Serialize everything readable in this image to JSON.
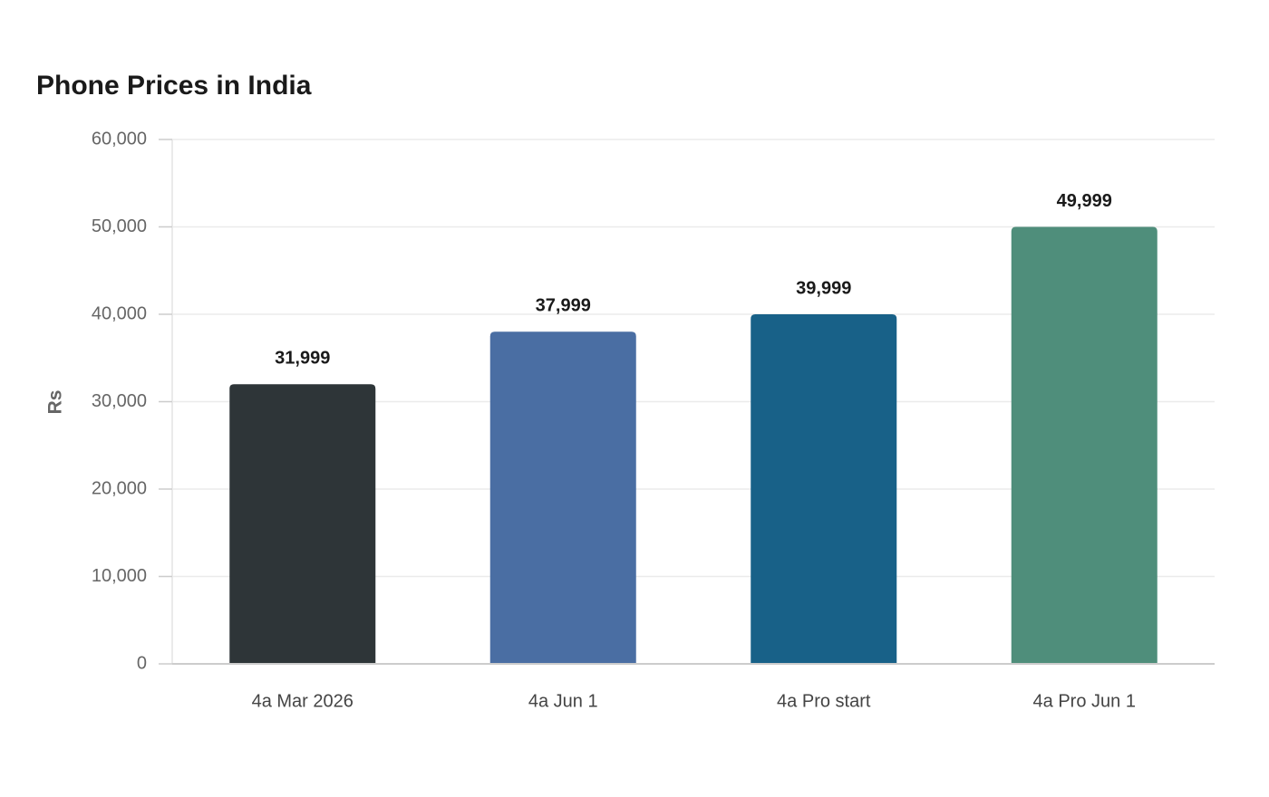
{
  "chart_data": {
    "type": "bar",
    "title": "Phone Prices in India",
    "y_label": "Rs",
    "categories": [
      "4a Mar 2026",
      "4a Jun 1",
      "4a Pro start",
      "4a Pro Jun 1"
    ],
    "values": [
      31999,
      37999,
      39999,
      49999
    ],
    "value_labels": [
      "31,999",
      "37,999",
      "39,999",
      "49,999"
    ],
    "colors": [
      "#2e3538",
      "#4a6ea3",
      "#186188",
      "#4f8e7b"
    ],
    "ylim": [
      0,
      60000
    ],
    "yticks": [
      0,
      {
        "value": 10000,
        "label": "10,000"
      },
      {
        "value": 20000,
        "label": "20,000"
      },
      {
        "value": 30000,
        "label": "30,000"
      },
      {
        "value": 40000,
        "label": "40,000"
      },
      {
        "value": 50000,
        "label": "50,000"
      },
      {
        "value": 60000,
        "label": "60,000"
      }
    ],
    "grid": true
  }
}
